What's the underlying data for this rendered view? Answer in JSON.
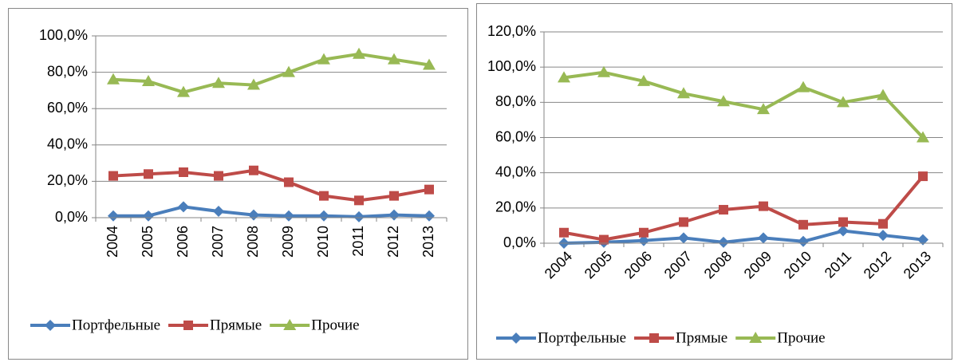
{
  "chart_data": [
    {
      "type": "line",
      "categories": [
        "2004",
        "2005",
        "2006",
        "2007",
        "2008",
        "2009",
        "2010",
        "2011",
        "2012",
        "2013"
      ],
      "series": [
        {
          "name": "Портфельные",
          "color": "#4a7ebb",
          "marker": "diamond",
          "values": [
            1,
            1,
            6,
            3.5,
            1.5,
            1,
            1,
            0.5,
            1.5,
            1
          ]
        },
        {
          "name": "Прямые",
          "color": "#be4b48",
          "marker": "square",
          "values": [
            23,
            24,
            25,
            23,
            26,
            19.5,
            12,
            9.5,
            12,
            15.5
          ]
        },
        {
          "name": "Прочие",
          "color": "#98b954",
          "marker": "triangle",
          "values": [
            76,
            75,
            69,
            74,
            73,
            80,
            87,
            90,
            87,
            84
          ]
        }
      ],
      "ylim": [
        0,
        100
      ],
      "yticks": [
        {
          "value": 0,
          "label": "0,0%"
        },
        {
          "value": 20,
          "label": "20,0%"
        },
        {
          "value": 40,
          "label": "40,0%"
        },
        {
          "value": 60,
          "label": "60,0%"
        },
        {
          "value": 80,
          "label": "80,0%"
        },
        {
          "value": 100,
          "label": "100,0%"
        }
      ],
      "grid": true,
      "legend": "bottom"
    },
    {
      "type": "line",
      "categories": [
        "2004",
        "2005",
        "2006",
        "2007",
        "2008",
        "2009",
        "2010",
        "2011",
        "2012",
        "2013"
      ],
      "series": [
        {
          "name": "Портфельные",
          "color": "#4a7ebb",
          "marker": "diamond",
          "values": [
            0,
            0.5,
            1.5,
            3,
            0.5,
            3,
            1,
            7,
            4.5,
            2
          ]
        },
        {
          "name": "Прямые",
          "color": "#be4b48",
          "marker": "square",
          "values": [
            6,
            2,
            6,
            12,
            19,
            21,
            10.5,
            12,
            11,
            38
          ]
        },
        {
          "name": "Прочие",
          "color": "#98b954",
          "marker": "triangle",
          "values": [
            94,
            97,
            92,
            85,
            80.5,
            76,
            88.5,
            80,
            84,
            60
          ]
        }
      ],
      "ylim": [
        0,
        120
      ],
      "yticks": [
        {
          "value": 0,
          "label": "0,0%"
        },
        {
          "value": 20,
          "label": "20,0%"
        },
        {
          "value": 40,
          "label": "40,0%"
        },
        {
          "value": 60,
          "label": "60,0%"
        },
        {
          "value": 80,
          "label": "80,0%"
        },
        {
          "value": 100,
          "label": "100,0%"
        },
        {
          "value": 120,
          "label": "120,0%"
        }
      ],
      "grid": true,
      "legend": "bottom"
    }
  ]
}
